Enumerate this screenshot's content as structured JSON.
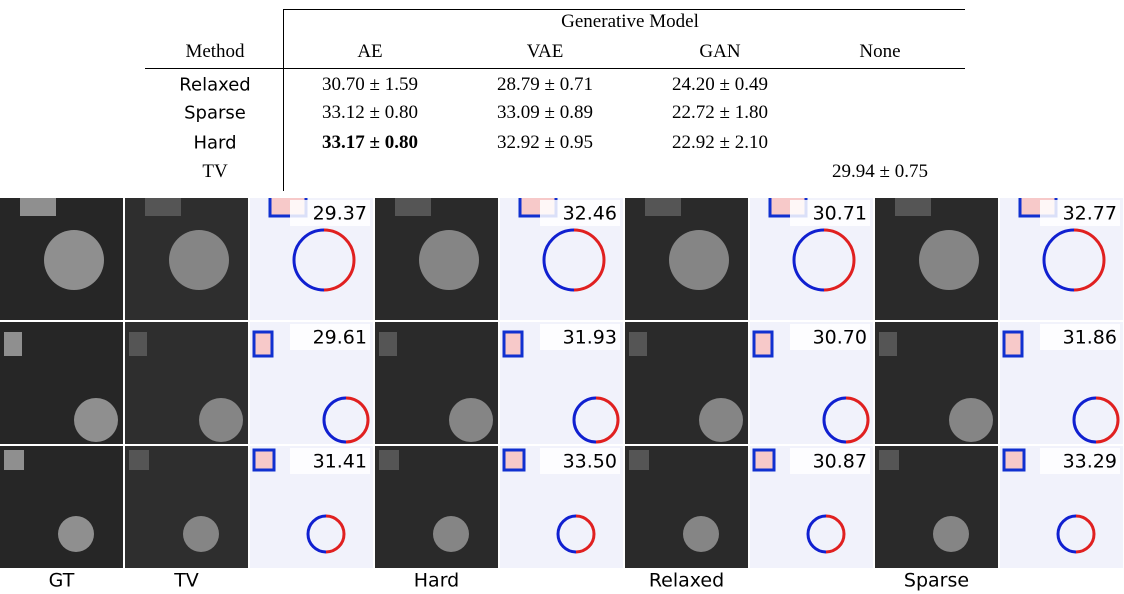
{
  "table": {
    "header_group": "Generative Model",
    "columns": [
      "Method",
      "AE",
      "VAE",
      "GAN",
      "None"
    ],
    "rows": [
      {
        "method": "Relaxed",
        "AE": "30.70 ± 1.59",
        "VAE": "28.79 ± 0.71",
        "GAN": "24.20 ± 0.49"
      },
      {
        "method": "Sparse",
        "AE": "33.12 ± 0.80",
        "VAE": "33.09 ± 0.89",
        "GAN": "22.72 ± 1.80"
      },
      {
        "method": "Hard",
        "AE": "33.17 ± 0.80",
        "VAE": "32.92 ± 0.95",
        "GAN": "22.92 ± 2.10"
      },
      {
        "method": "TV",
        "None": "29.94 ± 0.75"
      }
    ]
  },
  "figure": {
    "psnr": [
      [
        "29.37",
        "32.46",
        "30.71",
        "32.77"
      ],
      [
        "29.61",
        "31.93",
        "30.70",
        "31.86"
      ],
      [
        "31.41",
        "33.50",
        "30.87",
        "33.29"
      ]
    ],
    "labels": [
      "GT",
      "TV",
      "Hard",
      "Relaxed",
      "Sparse"
    ]
  }
}
